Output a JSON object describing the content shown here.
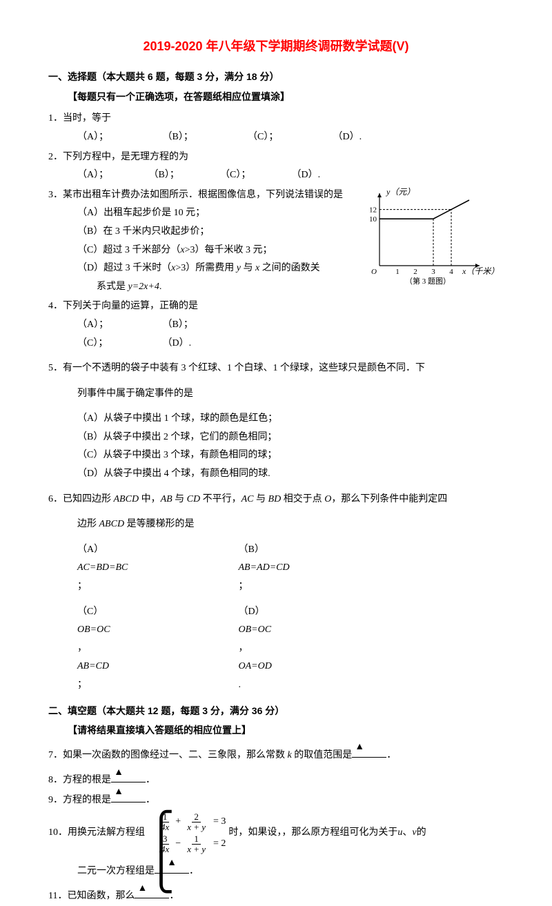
{
  "title": "2019-2020 年八年级下学期期终调研数学试题(V)",
  "section1": {
    "header": "一、选择题（本大题共 6 题，每题 3 分，满分 18 分）",
    "sub": "【每题只有一个正确选项，在答题纸相应位置填涂】"
  },
  "q1": {
    "text": "1．当时，等于",
    "a": "（A）；",
    "b": "（B）；",
    "c": "（C）；",
    "d": "（D）."
  },
  "q2": {
    "text": "2．下列方程中，是无理方程的为",
    "a": "（A）；",
    "b": "（B）；",
    "c": "（C）；",
    "d": "（D）."
  },
  "q3": {
    "text": "3．某市出租车计费办法如图所示．根据图像信息，下列说法错误的是",
    "a": "（A）出租车起步价是 10 元；",
    "b": "（B）在 3 千米内只收起步价；",
    "c_pre": "（C）超过 3 千米部分（",
    "c_mid": "x",
    "c_post": ">3）每千米收 3 元；",
    "d_pre": "（D）超过 3 千米时（",
    "d_mid": "x",
    "d_post1": ">3）所需费用 ",
    "d_y": "y",
    "d_post2": " 与 ",
    "d_x": "x",
    "d_post3": " 之间的函数关",
    "d_line2_pre": "系式是 ",
    "d_eq": "y=2x+4",
    "d_line2_post": "."
  },
  "chart": {
    "ylabel": "y（元）",
    "xlabel": "x（千米）",
    "caption": "（第 3 题图）",
    "yticks": [
      "10",
      "12"
    ],
    "xticks": [
      "1",
      "2",
      "3",
      "4"
    ],
    "origin": "O",
    "axis_color": "#000000",
    "dash_color": "#000000",
    "line_color": "#000000",
    "bg": "#ffffff",
    "xlim": [
      0,
      5
    ],
    "ylim": [
      0,
      14
    ],
    "points": [
      [
        0,
        10
      ],
      [
        3,
        10
      ],
      [
        4,
        12
      ],
      [
        5,
        14
      ]
    ],
    "dash_lines": [
      {
        "from": [
          0,
          10
        ],
        "to": [
          3,
          10
        ]
      },
      {
        "from": [
          0,
          12
        ],
        "to": [
          4,
          12
        ]
      },
      {
        "from": [
          3,
          0
        ],
        "to": [
          3,
          10
        ]
      },
      {
        "from": [
          4,
          0
        ],
        "to": [
          4,
          12
        ]
      }
    ]
  },
  "q4": {
    "text": "4．下列关于向量的运算，正确的是",
    "a": "（A）；",
    "b": "（B）；",
    "c": "（C）；",
    "d": "（D）."
  },
  "q5": {
    "text": "5．有一个不透明的袋子中装有 3 个红球、1 个白球、1 个绿球，这些球只是颜色不同．下",
    "text2": "列事件中属于确定事件的是",
    "a": "（A）从袋子中摸出 1 个球，球的颜色是红色；",
    "b": "（B）从袋子中摸出 2 个球，它们的颜色相同；",
    "c": "（C）从袋子中摸出 3 个球，有颜色相同的球；",
    "d": "（D）从袋子中摸出 4 个球，有颜色相同的球."
  },
  "q6": {
    "text_pre": "6．已知四边形 ",
    "abcd": "ABCD",
    "text_mid1": " 中，",
    "ab": "AB",
    "text_mid2": " 与 ",
    "cd": "CD",
    "text_mid3": " 不平行，",
    "ac": "AC",
    "text_mid4": " 与 ",
    "bd": "BD",
    "text_mid5": " 相交于点 ",
    "o": "O",
    "text_mid6": "，那么下列条件中能判定四",
    "line2_pre": "边形 ",
    "line2_abcd": "ABCD",
    "line2_post": " 是等腰梯形的是",
    "a_pre": "（A）",
    "a_eq": "AC=BD=BC",
    "a_post": "；",
    "b_pre": "（B）",
    "b_eq": "AB=AD=CD",
    "b_post": "；",
    "c_pre": "（C）",
    "c_eq1": "OB=OC",
    "c_mid": "，",
    "c_eq2": "AB=CD",
    "c_post": "；",
    "d_pre": "（D）",
    "d_eq1": "OB=OC",
    "d_mid": "，",
    "d_eq2": "OA=OD",
    "d_post": "."
  },
  "section2": {
    "header": "二、填空题（本大题共 12 题，每题 3 分，满分 36 分）",
    "sub": "【请将结果直接填入答题纸的相应位置上】"
  },
  "q7": {
    "pre": "7．如果一次函数的图像经过一、二、三象限，那么常数 ",
    "k": "k",
    "post": " 的取值范围是",
    "period": "．"
  },
  "q8": {
    "pre": "8．方程的根是",
    "period": "．"
  },
  "q9": {
    "pre": "9．方程的根是",
    "period": "．"
  },
  "q10": {
    "pre": "10．用换元法解方程组 ",
    "mid": " 时，如果设，，那么原方程组可化为关于 ",
    "u": "u",
    "comma": "、",
    "v": "v",
    "post": " 的",
    "line2": "二元一次方程组是",
    "period": "．",
    "eq": {
      "r1_n1": "1",
      "r1_d1": "4x",
      "r1_op1": "+",
      "r1_n2": "2",
      "r1_d2": "x + y",
      "r1_rhs": "= 3",
      "r2_n1": "3",
      "r2_d1": "4x",
      "r2_op1": "−",
      "r2_n2": "1",
      "r2_d2": "x + y",
      "r2_rhs": "= 2"
    }
  },
  "q11": {
    "pre": "11．已知函数，那么",
    "period": "．"
  }
}
